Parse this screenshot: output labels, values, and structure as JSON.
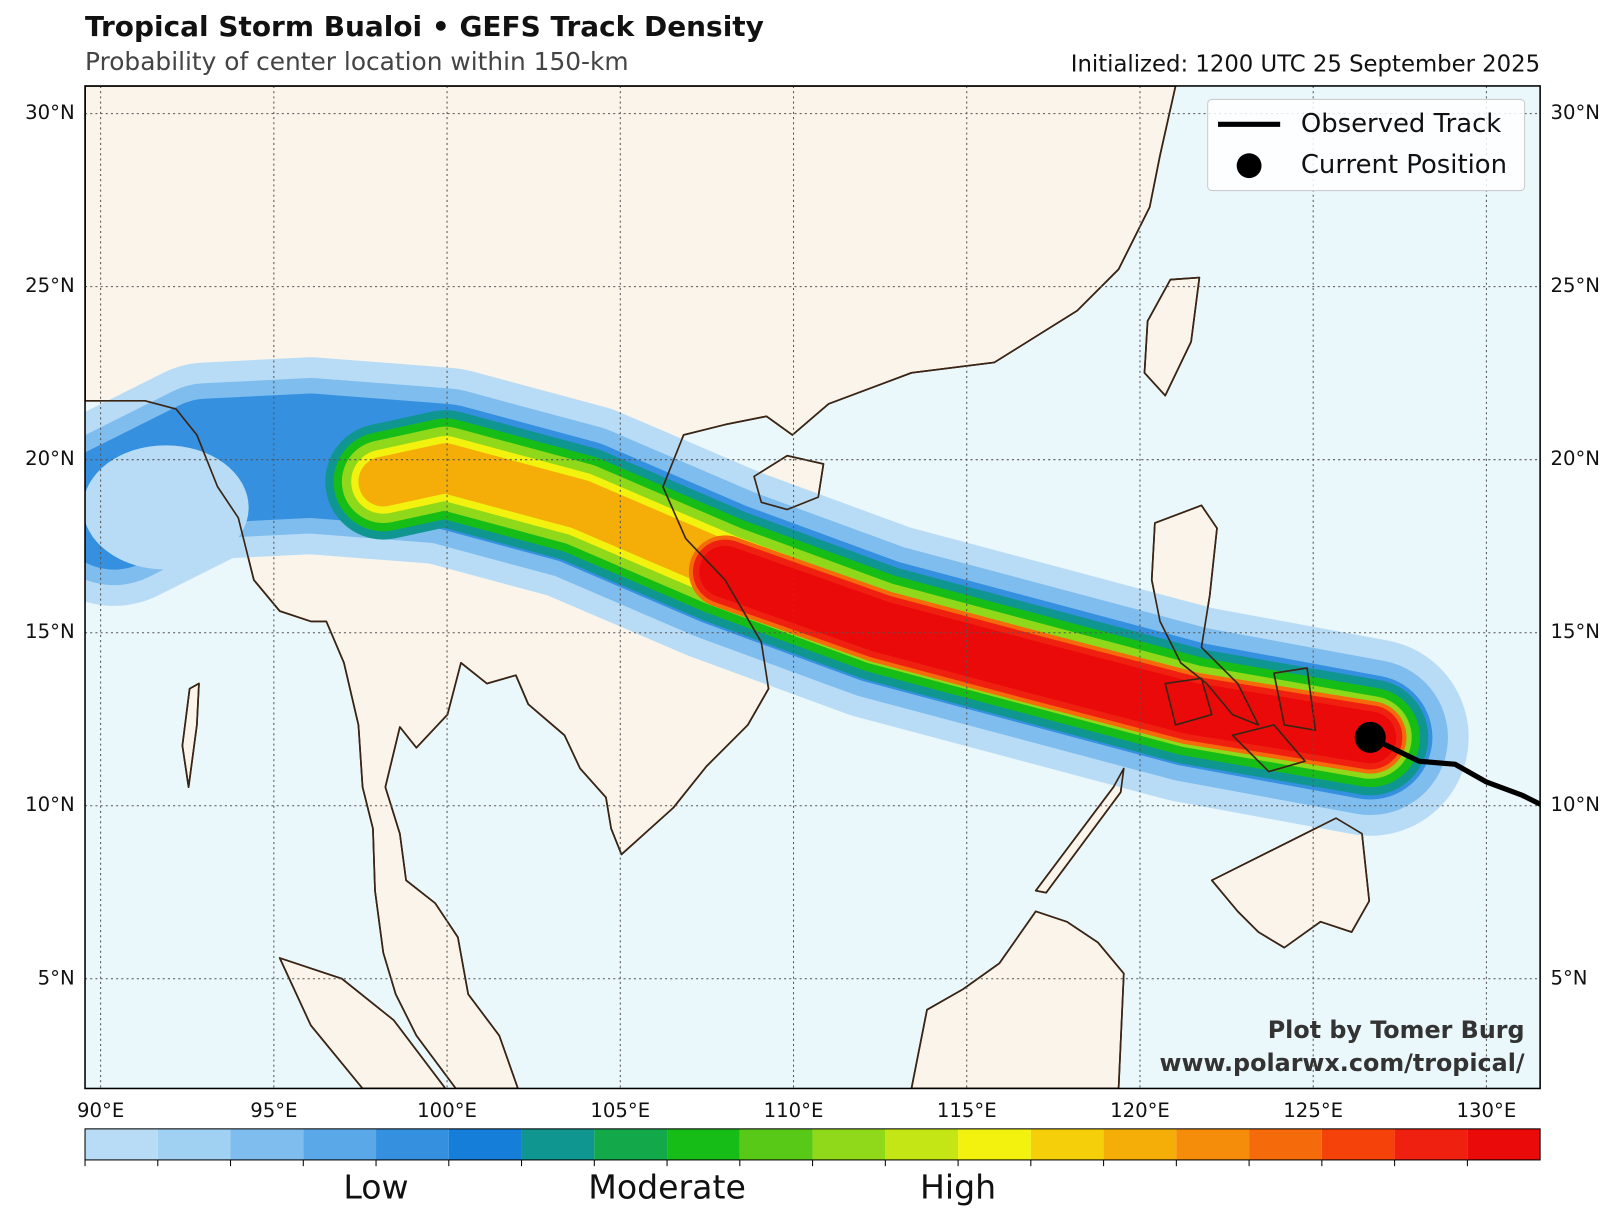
{
  "header": {
    "title": "Tropical Storm Bualoi • GEFS Track Density",
    "subtitle": "Probability of center location within 150-km",
    "initialized": "Initialized: 1200 UTC 25 September 2025"
  },
  "map": {
    "lon_range": [
      89.55,
      131.55
    ],
    "lat_range": [
      1.83,
      30.8
    ],
    "lon_ticks": [
      {
        "value": 90,
        "label": "90°E"
      },
      {
        "value": 95,
        "label": "95°E"
      },
      {
        "value": 100,
        "label": "100°E"
      },
      {
        "value": 105,
        "label": "105°E"
      },
      {
        "value": 110,
        "label": "110°E"
      },
      {
        "value": 115,
        "label": "115°E"
      },
      {
        "value": 120,
        "label": "120°E"
      },
      {
        "value": 125,
        "label": "125°E"
      },
      {
        "value": 130,
        "label": "130°E"
      }
    ],
    "lat_ticks": [
      {
        "value": 5,
        "label": "5°N"
      },
      {
        "value": 10,
        "label": "10°N"
      },
      {
        "value": 15,
        "label": "15°N"
      },
      {
        "value": 20,
        "label": "20°N"
      },
      {
        "value": 25,
        "label": "25°N"
      },
      {
        "value": 30,
        "label": "30°N"
      }
    ]
  },
  "legend": {
    "observed_track": "Observed Track",
    "current_position": "Current Position"
  },
  "credit": {
    "line1": "Plot by Tomer Burg",
    "line2": "www.polarwx.com/tropical/"
  },
  "colorbar": {
    "colors": [
      "#b8dcf5",
      "#a0d0f2",
      "#7fbdee",
      "#5aa8e8",
      "#3590e0",
      "#147ed8",
      "#0f9690",
      "#13a84a",
      "#17bd17",
      "#59c918",
      "#8fd81a",
      "#c4e614",
      "#f2f20e",
      "#f5cf0a",
      "#f5ae08",
      "#f58c0a",
      "#f56a0a",
      "#f5420a",
      "#f02010",
      "#ea0a0a"
    ],
    "labels": [
      "Low",
      "Moderate",
      "High"
    ]
  }
}
